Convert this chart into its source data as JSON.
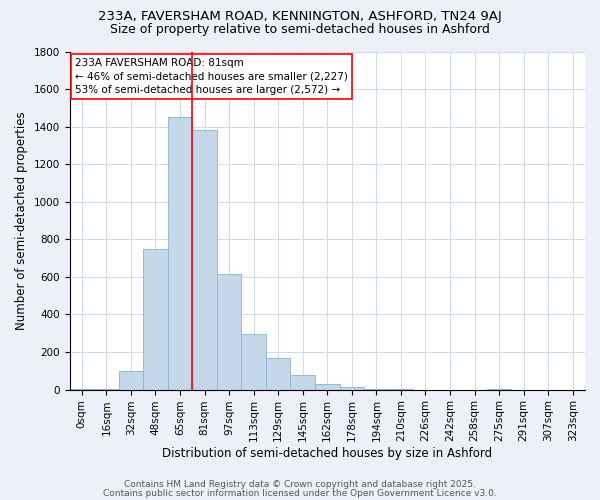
{
  "title1": "233A, FAVERSHAM ROAD, KENNINGTON, ASHFORD, TN24 9AJ",
  "title2": "Size of property relative to semi-detached houses in Ashford",
  "xlabel": "Distribution of semi-detached houses by size in Ashford",
  "ylabel": "Number of semi-detached properties",
  "categories": [
    "0sqm",
    "16sqm",
    "32sqm",
    "48sqm",
    "65sqm",
    "81sqm",
    "97sqm",
    "113sqm",
    "129sqm",
    "145sqm",
    "162sqm",
    "178sqm",
    "194sqm",
    "210sqm",
    "226sqm",
    "242sqm",
    "258sqm",
    "275sqm",
    "291sqm",
    "307sqm",
    "323sqm"
  ],
  "values": [
    5,
    5,
    100,
    750,
    1450,
    1380,
    615,
    295,
    170,
    80,
    30,
    15,
    5,
    5,
    0,
    0,
    0,
    5,
    0,
    0,
    0
  ],
  "bar_color": "#c5d8ea",
  "bar_edge_color": "#8ab4cf",
  "red_line_x": 4.5,
  "ylim": [
    0,
    1800
  ],
  "yticks": [
    0,
    200,
    400,
    600,
    800,
    1000,
    1200,
    1400,
    1600,
    1800
  ],
  "annotation_title": "233A FAVERSHAM ROAD: 81sqm",
  "annotation_line1": "← 46% of semi-detached houses are smaller (2,227)",
  "annotation_line2": "53% of semi-detached houses are larger (2,572) →",
  "footer1": "Contains HM Land Registry data © Crown copyright and database right 2025.",
  "footer2": "Contains public sector information licensed under the Open Government Licence v3.0.",
  "background_color": "#edf1f7",
  "plot_bg_color": "#ffffff",
  "grid_color": "#c8d4e0",
  "title1_fontsize": 9.5,
  "title2_fontsize": 9,
  "axis_label_fontsize": 8.5,
  "tick_fontsize": 7.5,
  "annotation_fontsize": 7.5,
  "footer_fontsize": 6.5
}
